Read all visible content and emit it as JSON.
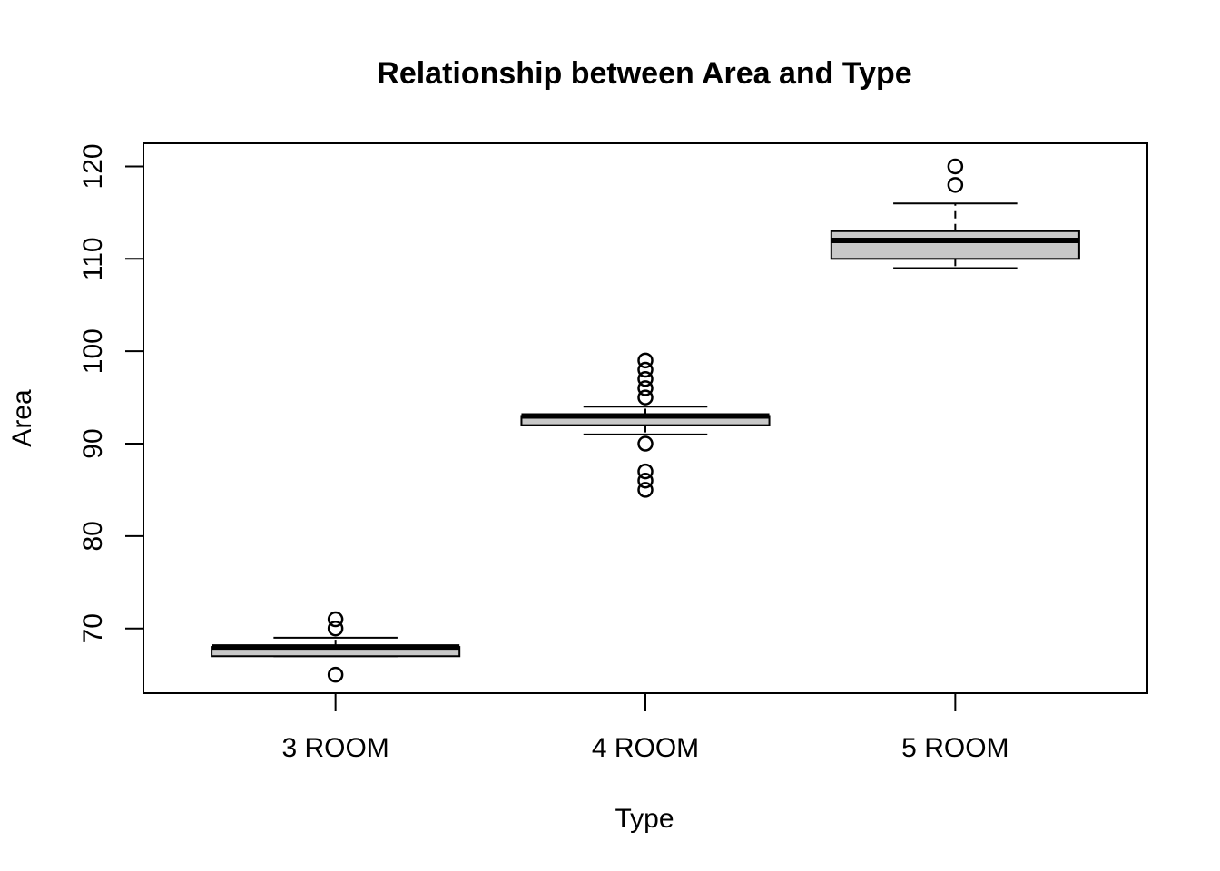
{
  "chart_data": {
    "type": "boxplot",
    "title": "Relationship between Area and Type",
    "xlabel": "Type",
    "ylabel": "Area",
    "ylim": [
      63,
      122.5
    ],
    "yticks": [
      70,
      80,
      90,
      100,
      110,
      120
    ],
    "categories": [
      "3 ROOM",
      "4 ROOM",
      "5 ROOM"
    ],
    "boxes": [
      {
        "category": "3 ROOM",
        "whisker_low": 67,
        "q1": 67,
        "median": 68,
        "q3": 68,
        "whisker_high": 69,
        "outliers": [
          65,
          70,
          71
        ]
      },
      {
        "category": "4 ROOM",
        "whisker_low": 91,
        "q1": 92,
        "median": 93,
        "q3": 93,
        "whisker_high": 94,
        "outliers": [
          85,
          86,
          87,
          90,
          95,
          96,
          97,
          98,
          99
        ]
      },
      {
        "category": "5 ROOM",
        "whisker_low": 109,
        "q1": 110,
        "median": 112,
        "q3": 113,
        "whisker_high": 116,
        "outliers": [
          118,
          120
        ]
      }
    ],
    "box_fill": "#c8c8c8",
    "grid": false
  }
}
